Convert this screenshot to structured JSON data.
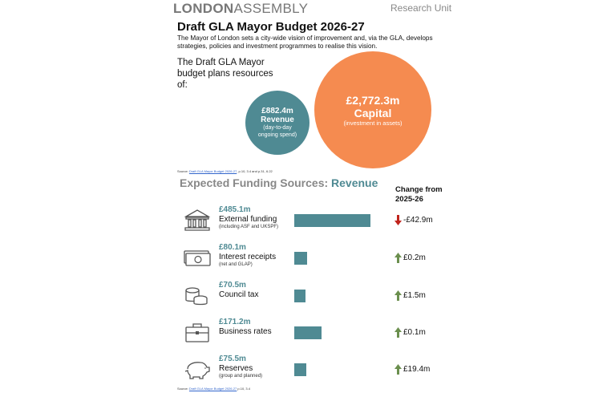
{
  "header": {
    "logo_bold": "LONDON",
    "logo_light": "ASSEMBLY",
    "unit": "Research Unit"
  },
  "title": "Draft GLA Mayor Budget 2026-27",
  "intro": "The Mayor of London sets a city-wide vision of improvement and, via the GLA, develops strategies, policies and investment programmes to realise this vision.",
  "lead": "The Draft GLA Mayor budget plans resources of:",
  "revenue": {
    "amount": "£882.4m",
    "name": "Revenue",
    "desc": "(day-to-day ongoing spend)",
    "color": "#4f8a93"
  },
  "capital": {
    "amount": "£2,772.3m",
    "name": "Capital",
    "desc": "(investment in assets)",
    "color": "#f58b50"
  },
  "source1": {
    "prefix": "Source: ",
    "link": "Draft GLA Mayor Budget 2026-27",
    "suffix": ", p.10, 3.4 and p.31, 6.22"
  },
  "section": {
    "title": "Expected Funding Sources: ",
    "highlight": "Revenue",
    "change_header": "Change from 2025-26"
  },
  "chart_data": {
    "type": "bar",
    "categories": [
      "External funding",
      "Interest receipts",
      "Council tax",
      "Business rates",
      "Reserves"
    ],
    "values": [
      485.1,
      80.1,
      70.5,
      171.2,
      75.5
    ],
    "value_labels": [
      "£485.1m",
      "£80.1m",
      "£70.5m",
      "£171.2m",
      "£75.5m"
    ],
    "sublabels": [
      "(including ASF and UKSPF)",
      "(net and GLAP)",
      "",
      "",
      "(group and planned)"
    ],
    "icons": [
      "bank-icon",
      "banknotes-icon",
      "coins-icon",
      "briefcase-icon",
      "piggy-bank-icon"
    ],
    "changes": [
      "-£42.9m",
      "£0.2m",
      "£1.5m",
      "£0.1m",
      "£19.4m"
    ],
    "change_direction": [
      "down",
      "up",
      "up",
      "up",
      "up"
    ],
    "bar_color": "#4f8a93",
    "up_color": "#6b8f4e",
    "down_color": "#c0241c"
  },
  "source2": {
    "prefix": "Source: ",
    "link": "Draft GLA Mayor Budget 2026-27",
    "suffix": " p.10, 3.4"
  }
}
